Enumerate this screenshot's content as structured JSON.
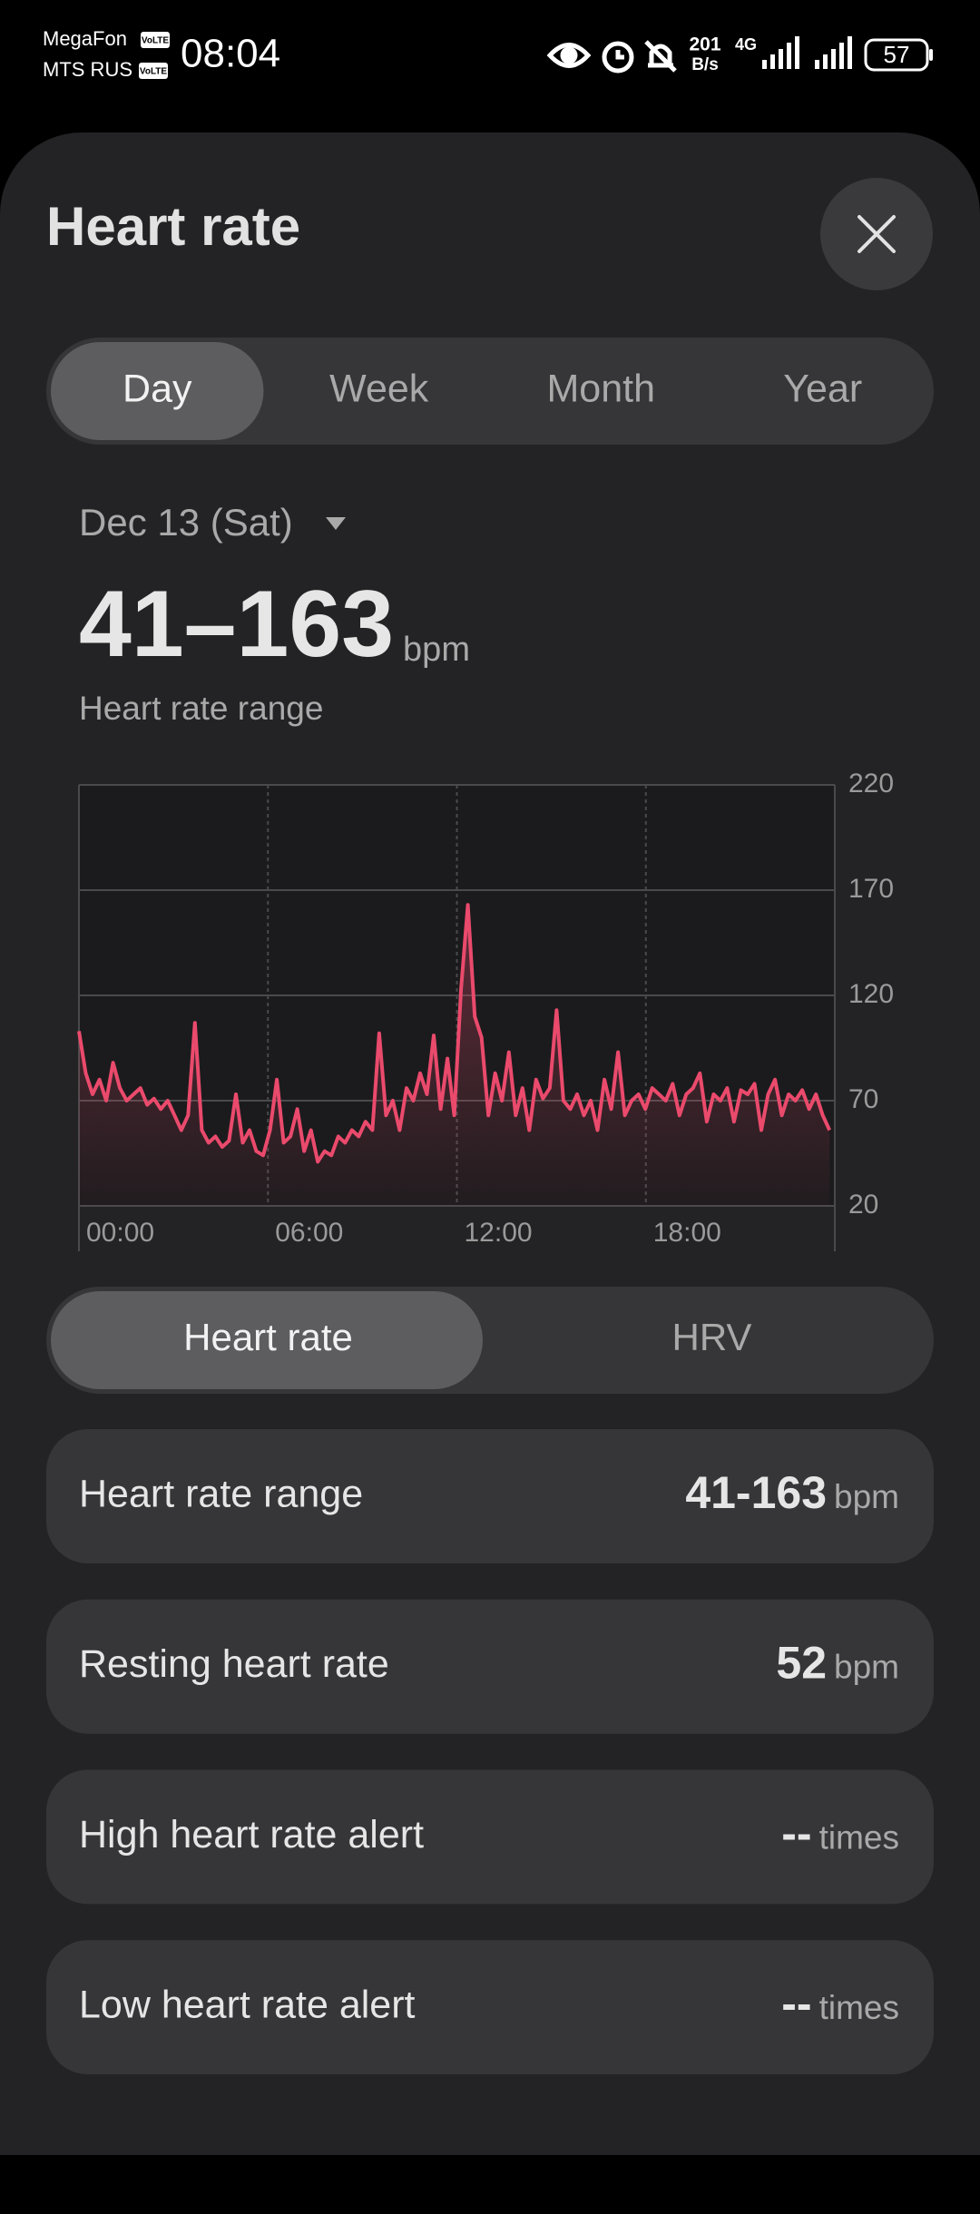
{
  "status_bar": {
    "carrier_1": "MegaFon",
    "volte_1": "VoLTE",
    "carrier_2": "MTS RUS",
    "volte_2": "VoLTE",
    "time": "08:04",
    "net_speed": "201",
    "net_speed_unit": "B/s",
    "network": "4G",
    "battery": "57"
  },
  "header": {
    "title": "Heart rate"
  },
  "period_tabs": [
    "Day",
    "Week",
    "Month",
    "Year"
  ],
  "selected_period": 0,
  "date": "Dec 13 (Sat)",
  "summary": {
    "value": "41–163",
    "unit": "bpm",
    "label": "Heart rate range"
  },
  "chart_data": {
    "type": "line",
    "color": "#ea4a6c",
    "x": [
      0,
      13,
      26,
      39,
      52,
      65,
      78,
      91,
      104,
      117,
      130,
      143,
      156,
      169,
      182,
      195,
      208,
      221,
      234,
      247,
      260,
      273,
      286,
      299,
      312,
      325,
      338,
      351,
      364,
      377,
      390,
      403,
      416,
      429,
      442,
      455,
      468,
      481,
      494,
      507,
      520,
      533,
      546,
      559,
      572,
      585,
      598,
      611,
      624,
      637,
      650,
      663,
      676,
      689,
      702,
      715,
      728,
      741,
      754,
      767,
      780,
      793,
      806,
      819,
      832,
      845,
      858,
      871,
      884,
      897,
      910,
      923,
      936,
      949,
      962,
      975,
      988,
      1001,
      1014,
      1027,
      1040,
      1053,
      1066,
      1079,
      1092,
      1105,
      1118,
      1131,
      1144,
      1157,
      1170,
      1183,
      1196,
      1209,
      1222,
      1235,
      1248,
      1261,
      1274,
      1287,
      1300,
      1313,
      1326,
      1339,
      1352,
      1365,
      1378,
      1391,
      1404,
      1417,
      1430
    ],
    "values": [
      103,
      83,
      73,
      80,
      70,
      88,
      76,
      70,
      73,
      76,
      68,
      71,
      66,
      70,
      63,
      56,
      63,
      107,
      56,
      50,
      53,
      48,
      51,
      73,
      50,
      56,
      46,
      44,
      56,
      80,
      50,
      53,
      66,
      46,
      56,
      41,
      46,
      44,
      53,
      50,
      56,
      53,
      60,
      56,
      102,
      63,
      70,
      56,
      76,
      70,
      83,
      73,
      101,
      66,
      90,
      63,
      123,
      163,
      110,
      100,
      63,
      83,
      70,
      93,
      63,
      76,
      56,
      80,
      71,
      76,
      113,
      70,
      66,
      73,
      63,
      70,
      56,
      80,
      66,
      93,
      63,
      70,
      73,
      66,
      76,
      73,
      70,
      78,
      63,
      73,
      76,
      83,
      60,
      73,
      70,
      76,
      60,
      75,
      73,
      78,
      56,
      73,
      80,
      63,
      73,
      70,
      75,
      66,
      73,
      63,
      56
    ],
    "xlim": [
      0,
      1440
    ],
    "xticks": [
      {
        "value": 0,
        "label": "00:00"
      },
      {
        "value": 360,
        "label": "06:00"
      },
      {
        "value": 720,
        "label": "12:00"
      },
      {
        "value": 1080,
        "label": "18:00"
      }
    ],
    "ylim": [
      20,
      220
    ],
    "yticks": [
      20,
      70,
      120,
      170,
      220
    ],
    "grid": true,
    "area": true
  },
  "metric_tabs": [
    "Heart rate",
    "HRV"
  ],
  "selected_metric": 0,
  "stats": [
    {
      "label": "Heart rate range",
      "value": "41-163",
      "unit": "bpm"
    },
    {
      "label": "Resting heart rate",
      "value": 52,
      "unit": "bpm"
    },
    {
      "label": "High heart rate alert",
      "value": "--",
      "unit": "times"
    },
    {
      "label": "Low heart rate alert",
      "value": "--",
      "unit": "times"
    }
  ]
}
